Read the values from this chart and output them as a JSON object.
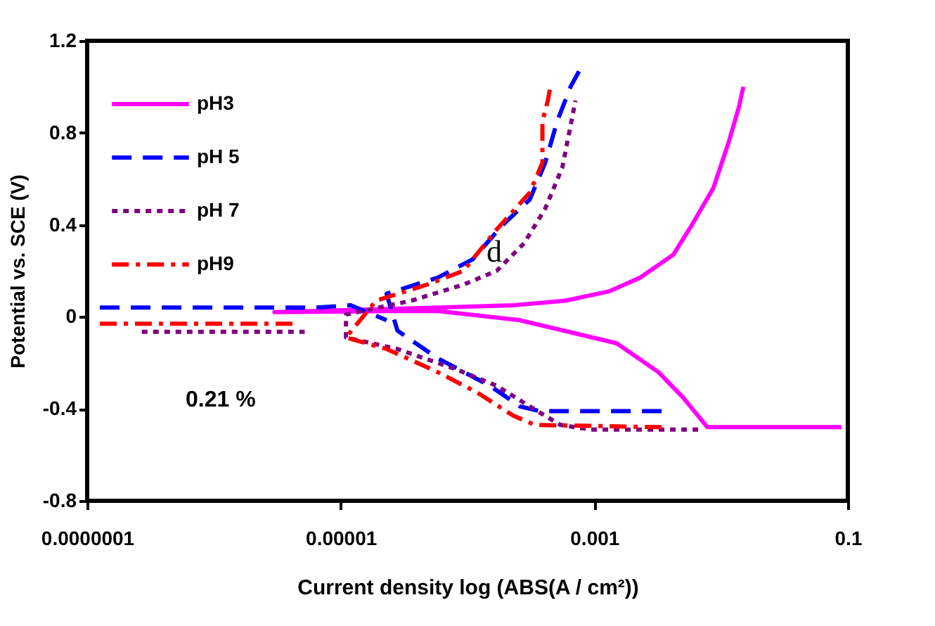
{
  "chart_data": {
    "type": "line",
    "xlabel": "Current density log (ABS(A / cm²))",
    "ylabel": "Potential vs. SCE (V)",
    "log": "x",
    "xlim": [
      1e-07,
      0.1
    ],
    "xticks": [
      {
        "value": 1e-07,
        "label": "0.0000001"
      },
      {
        "value": 1e-05,
        "label": "0.00001"
      },
      {
        "value": 0.001,
        "label": "0.001"
      },
      {
        "value": 0.1,
        "label": "0.1"
      }
    ],
    "ylim": [
      -0.8,
      1.2
    ],
    "yticks": [
      -0.8,
      -0.4,
      0,
      0.4,
      0.8,
      1.2
    ],
    "grid": false,
    "legend": "top left",
    "annotations": [
      "0.21 %",
      "d"
    ],
    "series": [
      {
        "name": "pH3",
        "color": "#ff00ff",
        "line_style": "solid",
        "x": [
          0.089,
          0.0078,
          0.005,
          0.0032,
          0.0015,
          0.00026,
          5.9e-05,
          2.3e-05,
          3e-06,
          5.9e-05,
          0.00023,
          0.00059,
          0.0013,
          0.0023,
          0.0042,
          0.0059,
          0.0087,
          0.0115,
          0.0138,
          0.015
        ],
        "values": [
          -0.48,
          -0.48,
          -0.35,
          -0.24,
          -0.115,
          -0.015,
          0.025,
          0.025,
          0.02,
          0.04,
          0.05,
          0.07,
          0.11,
          0.17,
          0.27,
          0.4,
          0.56,
          0.76,
          0.91,
          1.0
        ]
      },
      {
        "name": "pH 5",
        "color": "#0000ff",
        "line_style": "dashed",
        "x": [
          1.259e-07,
          6.2e-06,
          1.2e-05,
          2.3e-05,
          null,
          0.0034,
          0.00037,
          0.00026,
          0.00015,
          5.8e-05,
          2.8e-05,
          2.3e-05,
          5.8e-05,
          0.00011,
          0.00019,
          0.00031,
          0.00041,
          0.00051,
          0.00065,
          0.00078
        ],
        "values": [
          0.04,
          0.04,
          0.05,
          -0.015,
          null,
          -0.41,
          -0.41,
          -0.39,
          -0.3,
          -0.18,
          -0.06,
          0.1,
          0.17,
          0.25,
          0.4,
          0.51,
          0.67,
          0.85,
          1.0,
          1.08
        ]
      },
      {
        "name": "pH 7",
        "color": "#800080",
        "line_style": "dotted",
        "x": [
          2.7e-07,
          5.2e-06,
          null,
          0.0066,
          0.00093,
          0.00054,
          0.00031,
          0.00017,
          8.3e-05,
          2.8e-05,
          1.1e-05,
          1.1e-05,
          3.6e-05,
          9.3e-05,
          0.00017,
          0.00028,
          0.00041,
          0.00056,
          0.00065,
          0.00071
        ],
        "values": [
          -0.065,
          -0.065,
          null,
          -0.49,
          -0.49,
          -0.47,
          -0.39,
          -0.3,
          -0.23,
          -0.14,
          -0.09,
          0.01,
          0.07,
          0.14,
          0.2,
          0.32,
          0.47,
          0.65,
          0.83,
          0.94
        ]
      },
      {
        "name": "pH9",
        "color": "#ff0000",
        "line_style": "dashdot",
        "x": [
          1.259e-07,
          4.7e-06,
          null,
          0.0034,
          0.00034,
          0.00023,
          0.00012,
          5.8e-05,
          2.3e-05,
          1.1e-05,
          1.9e-05,
          4.8e-05,
          9.3e-05,
          0.00017,
          0.00031,
          0.00039,
          0.00039,
          0.00043,
          0.00045
        ],
        "values": [
          -0.03,
          -0.03,
          null,
          -0.48,
          -0.47,
          -0.43,
          -0.33,
          -0.24,
          -0.14,
          -0.09,
          0.07,
          0.14,
          0.2,
          0.38,
          0.54,
          0.67,
          0.85,
          0.94,
          1.0
        ]
      }
    ]
  }
}
